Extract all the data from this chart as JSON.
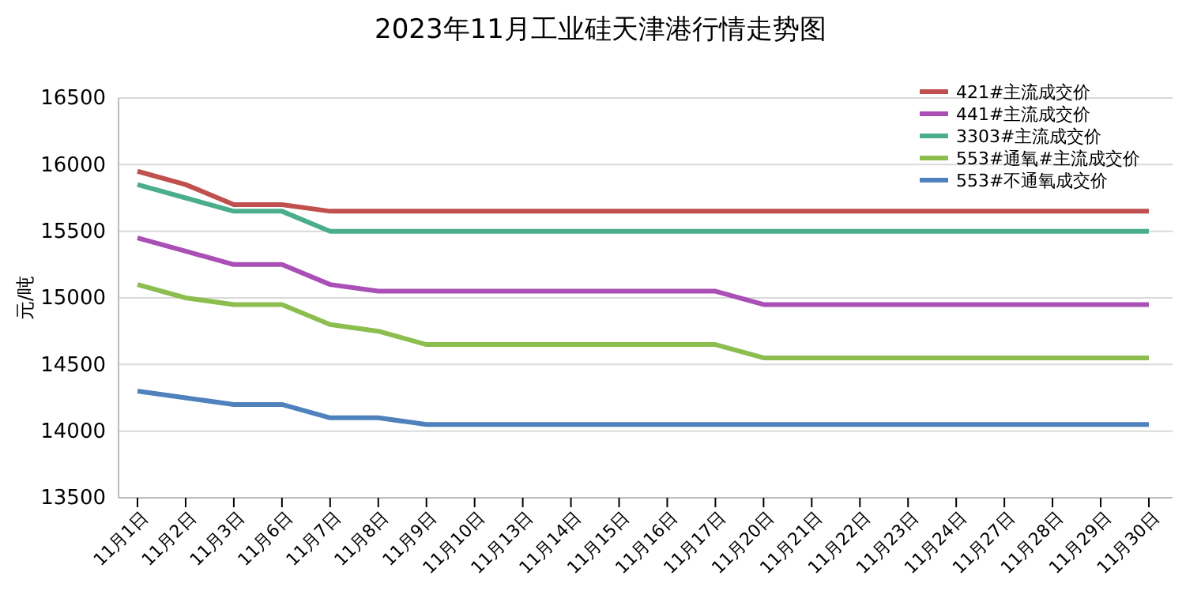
{
  "chart_data": {
    "type": "line",
    "title": "2023年11月工业硅天津港行情走势图",
    "ylabel": "元/吨",
    "categories": [
      "11月1日",
      "11月2日",
      "11月3日",
      "11月6日",
      "11月7日",
      "11月8日",
      "11月9日",
      "11月10日",
      "11月13日",
      "11月14日",
      "11月15日",
      "11月16日",
      "11月17日",
      "11月20日",
      "11月21日",
      "11月22日",
      "11月23日",
      "11月24日",
      "11月27日",
      "11月28日",
      "11月29日",
      "11月30日"
    ],
    "series": [
      {
        "name": "421#主流成交价",
        "color": "#c0504d",
        "values": [
          15950,
          15850,
          15700,
          15700,
          15650,
          15650,
          15650,
          15650,
          15650,
          15650,
          15650,
          15650,
          15650,
          15650,
          15650,
          15650,
          15650,
          15650,
          15650,
          15650,
          15650,
          15650
        ]
      },
      {
        "name": "441#主流成交价",
        "color": "#a94fb5",
        "values": [
          15450,
          15350,
          15250,
          15250,
          15100,
          15050,
          15050,
          15050,
          15050,
          15050,
          15050,
          15050,
          15050,
          14950,
          14950,
          14950,
          14950,
          14950,
          14950,
          14950,
          14950,
          14950
        ]
      },
      {
        "name": "3303#主流成交价",
        "color": "#4bae8a",
        "values": [
          15850,
          15750,
          15650,
          15650,
          15500,
          15500,
          15500,
          15500,
          15500,
          15500,
          15500,
          15500,
          15500,
          15500,
          15500,
          15500,
          15500,
          15500,
          15500,
          15500,
          15500,
          15500
        ]
      },
      {
        "name": "553#通氧#主流成交价",
        "color": "#8cbd4f",
        "values": [
          15100,
          15000,
          14950,
          14950,
          14800,
          14750,
          14650,
          14650,
          14650,
          14650,
          14650,
          14650,
          14650,
          14550,
          14550,
          14550,
          14550,
          14550,
          14550,
          14550,
          14550,
          14550
        ]
      },
      {
        "name": "553#不通氧成交价",
        "color": "#4f81bd",
        "values": [
          14300,
          14250,
          14200,
          14200,
          14100,
          14100,
          14050,
          14050,
          14050,
          14050,
          14050,
          14050,
          14050,
          14050,
          14050,
          14050,
          14050,
          14050,
          14050,
          14050,
          14050,
          14050
        ]
      }
    ],
    "ylim": [
      13500,
      16500
    ],
    "yticks": [
      13500,
      14000,
      14500,
      15000,
      15500,
      16000,
      16500
    ],
    "grid": "y",
    "legend": "top right",
    "marker": "none",
    "line_style": "solid"
  }
}
